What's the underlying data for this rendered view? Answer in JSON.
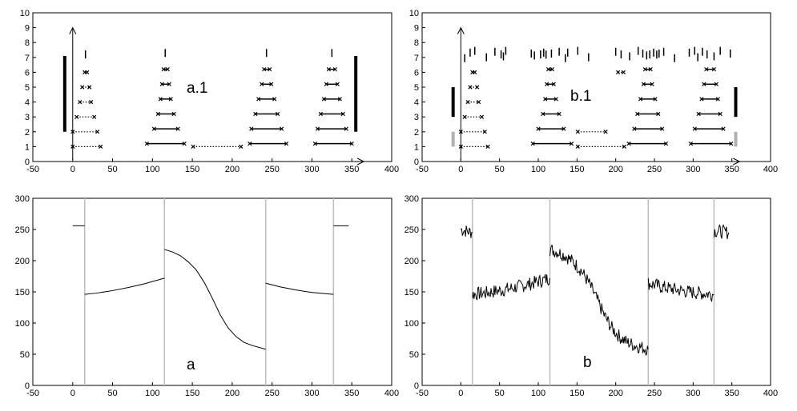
{
  "chart_data": [
    {
      "id": "a1",
      "type": "scatter",
      "annotation": "a.1",
      "xlim": [
        -50,
        400
      ],
      "ylim": [
        0,
        10
      ],
      "xticks": [
        -50,
        0,
        50,
        100,
        150,
        200,
        250,
        300,
        350,
        400
      ],
      "yticks": [
        0,
        1,
        2,
        3,
        4,
        5,
        6,
        7,
        8,
        9,
        10
      ],
      "segments": [
        {
          "x1": 0,
          "x2": 35,
          "y": 1,
          "style": "dotted"
        },
        {
          "x1": 0,
          "x2": 31,
          "y": 2,
          "style": "dotted"
        },
        {
          "x1": 5,
          "x2": 27,
          "y": 3,
          "style": "dotted"
        },
        {
          "x1": 9,
          "x2": 23,
          "y": 4,
          "style": "dotted"
        },
        {
          "x1": 12,
          "x2": 21,
          "y": 5,
          "style": "dotted"
        },
        {
          "x1": 15,
          "x2": 18,
          "y": 6,
          "style": "dotted"
        },
        {
          "x1": 16,
          "x2": 16,
          "y": 7.2,
          "style": "tick"
        },
        {
          "x1": 93,
          "x2": 140,
          "y": 1.2,
          "style": "solid"
        },
        {
          "x1": 102,
          "x2": 132,
          "y": 2.2,
          "style": "solid"
        },
        {
          "x1": 107,
          "x2": 127,
          "y": 3.2,
          "style": "solid"
        },
        {
          "x1": 110,
          "x2": 123,
          "y": 4.2,
          "style": "solid"
        },
        {
          "x1": 112,
          "x2": 121,
          "y": 5.2,
          "style": "solid"
        },
        {
          "x1": 114,
          "x2": 119,
          "y": 6.2,
          "style": "solid"
        },
        {
          "x1": 116,
          "x2": 116,
          "y": 7.3,
          "style": "tick"
        },
        {
          "x1": 151,
          "x2": 211,
          "y": 1,
          "style": "dotted"
        },
        {
          "x1": 222,
          "x2": 268,
          "y": 1.2,
          "style": "solid"
        },
        {
          "x1": 224,
          "x2": 262,
          "y": 2.2,
          "style": "solid"
        },
        {
          "x1": 229,
          "x2": 257,
          "y": 3.2,
          "style": "solid"
        },
        {
          "x1": 233,
          "x2": 253,
          "y": 4.2,
          "style": "solid"
        },
        {
          "x1": 237,
          "x2": 249,
          "y": 5.2,
          "style": "solid"
        },
        {
          "x1": 240,
          "x2": 247,
          "y": 6.2,
          "style": "solid"
        },
        {
          "x1": 243,
          "x2": 243,
          "y": 7.3,
          "style": "tick"
        },
        {
          "x1": 304,
          "x2": 350,
          "y": 1.2,
          "style": "solid"
        },
        {
          "x1": 307,
          "x2": 343,
          "y": 2.2,
          "style": "solid"
        },
        {
          "x1": 311,
          "x2": 339,
          "y": 3.2,
          "style": "solid"
        },
        {
          "x1": 315,
          "x2": 335,
          "y": 4.2,
          "style": "solid"
        },
        {
          "x1": 318,
          "x2": 332,
          "y": 5.2,
          "style": "solid"
        },
        {
          "x1": 321,
          "x2": 329,
          "y": 6.2,
          "style": "solid"
        },
        {
          "x1": 325,
          "x2": 325,
          "y": 7.3,
          "style": "tick"
        }
      ],
      "bars": [
        {
          "x": -10,
          "y1": 2,
          "y2": 7.1,
          "color": "#000000"
        },
        {
          "x": 355,
          "y1": 2,
          "y2": 7.1,
          "color": "#000000"
        }
      ],
      "arrows": {
        "x_from": -20,
        "x_to": 365,
        "y_axis_x": 0,
        "y_to": 9
      },
      "scatter_ticks": []
    },
    {
      "id": "b1",
      "type": "scatter",
      "annotation": "b.1",
      "xlim": [
        -50,
        400
      ],
      "ylim": [
        0,
        10
      ],
      "xticks": [
        -50,
        0,
        50,
        100,
        150,
        200,
        250,
        300,
        350,
        400
      ],
      "yticks": [
        0,
        1,
        2,
        3,
        4,
        5,
        6,
        7,
        8,
        9,
        10
      ],
      "segments": [
        {
          "x1": 0,
          "x2": 35,
          "y": 1,
          "style": "dotted"
        },
        {
          "x1": 0,
          "x2": 31,
          "y": 2,
          "style": "dotted"
        },
        {
          "x1": 5,
          "x2": 27,
          "y": 3,
          "style": "dotted"
        },
        {
          "x1": 9,
          "x2": 23,
          "y": 4,
          "style": "dotted"
        },
        {
          "x1": 12,
          "x2": 21,
          "y": 5,
          "style": "dotted"
        },
        {
          "x1": 15,
          "x2": 18,
          "y": 6,
          "style": "dotted"
        },
        {
          "x1": 93,
          "x2": 143,
          "y": 1.2,
          "style": "solid"
        },
        {
          "x1": 100,
          "x2": 133,
          "y": 2.2,
          "style": "solid"
        },
        {
          "x1": 106,
          "x2": 127,
          "y": 3.2,
          "style": "solid"
        },
        {
          "x1": 109,
          "x2": 123,
          "y": 4.2,
          "style": "solid"
        },
        {
          "x1": 111,
          "x2": 120,
          "y": 5.2,
          "style": "solid"
        },
        {
          "x1": 113,
          "x2": 118,
          "y": 6.2,
          "style": "solid"
        },
        {
          "x1": 151,
          "x2": 211,
          "y": 1,
          "style": "dotted"
        },
        {
          "x1": 151,
          "x2": 187,
          "y": 2,
          "style": "dotted"
        },
        {
          "x1": 217,
          "x2": 265,
          "y": 1.2,
          "style": "solid"
        },
        {
          "x1": 224,
          "x2": 260,
          "y": 2.2,
          "style": "solid"
        },
        {
          "x1": 228,
          "x2": 255,
          "y": 3.2,
          "style": "solid"
        },
        {
          "x1": 232,
          "x2": 251,
          "y": 4.2,
          "style": "solid"
        },
        {
          "x1": 236,
          "x2": 247,
          "y": 5.2,
          "style": "solid"
        },
        {
          "x1": 238,
          "x2": 245,
          "y": 6.2,
          "style": "solid"
        },
        {
          "x1": 297,
          "x2": 349,
          "y": 1.2,
          "style": "solid"
        },
        {
          "x1": 302,
          "x2": 339,
          "y": 2.2,
          "style": "solid"
        },
        {
          "x1": 307,
          "x2": 335,
          "y": 3.2,
          "style": "solid"
        },
        {
          "x1": 311,
          "x2": 332,
          "y": 4.2,
          "style": "solid"
        },
        {
          "x1": 314,
          "x2": 330,
          "y": 5.2,
          "style": "solid"
        },
        {
          "x1": 317,
          "x2": 327,
          "y": 6.2,
          "style": "solid"
        },
        {
          "x1": 203,
          "x2": 210,
          "y": 6,
          "style": "dotted"
        }
      ],
      "bars": [
        {
          "x": -10,
          "y1": 3,
          "y2": 5,
          "color": "#000000"
        },
        {
          "x": -10,
          "y1": 1,
          "y2": 2,
          "color": "#b0b0b0"
        },
        {
          "x": 355,
          "y1": 3,
          "y2": 5,
          "color": "#000000"
        },
        {
          "x": 355,
          "y1": 1,
          "y2": 2,
          "color": "#b0b0b0"
        }
      ],
      "arrows": {
        "x_from": -15,
        "x_to": 360,
        "y_axis_x": 0,
        "y_to": 9
      },
      "scatter_ticks": [
        5,
        12,
        18,
        33,
        44,
        52,
        55,
        58,
        91,
        95,
        103,
        107,
        110,
        117,
        127,
        135,
        138,
        151,
        165,
        200,
        207,
        218,
        229,
        235,
        240,
        244,
        249,
        253,
        256,
        262,
        276,
        295,
        302,
        306,
        312,
        318,
        327,
        335,
        348
      ]
    },
    {
      "id": "a",
      "type": "line",
      "annotation": "a",
      "xlim": [
        -50,
        400
      ],
      "ylim": [
        0,
        300
      ],
      "xticks": [
        -50,
        0,
        50,
        100,
        150,
        200,
        250,
        300,
        350,
        400
      ],
      "yticks": [
        0,
        50,
        100,
        150,
        200,
        250,
        300
      ],
      "vlines": [
        15,
        115,
        242,
        327
      ],
      "noise": 0,
      "series": [
        {
          "x": [
            0,
            15
          ],
          "y": [
            256,
            256
          ]
        },
        {
          "x": [
            15,
            30,
            50,
            70,
            90,
            115
          ],
          "y": [
            146,
            148,
            152,
            157,
            163,
            172
          ]
        },
        {
          "x": [
            115,
            125,
            135,
            145,
            155,
            165,
            175,
            185,
            195,
            205,
            215,
            225,
            242
          ],
          "y": [
            218,
            214,
            208,
            198,
            185,
            165,
            140,
            113,
            92,
            78,
            69,
            64,
            58
          ]
        },
        {
          "x": [
            242,
            260,
            280,
            300,
            327
          ],
          "y": [
            164,
            158,
            153,
            149,
            146
          ]
        },
        {
          "x": [
            327,
            346
          ],
          "y": [
            256,
            256
          ]
        }
      ]
    },
    {
      "id": "b",
      "type": "line",
      "annotation": "b",
      "xlim": [
        -50,
        400
      ],
      "ylim": [
        0,
        300
      ],
      "xticks": [
        -50,
        0,
        50,
        100,
        150,
        200,
        250,
        300,
        350,
        400
      ],
      "yticks": [
        0,
        50,
        100,
        150,
        200,
        250,
        300
      ],
      "vlines": [
        15,
        115,
        242,
        327
      ],
      "noise": 1,
      "series": [
        {
          "x": [
            0,
            15
          ],
          "y": [
            250,
            245
          ]
        },
        {
          "x": [
            15,
            30,
            50,
            70,
            90,
            115
          ],
          "y": [
            146,
            148,
            152,
            157,
            163,
            172
          ]
        },
        {
          "x": [
            115,
            125,
            135,
            145,
            155,
            165,
            175,
            185,
            195,
            205,
            215,
            225,
            242
          ],
          "y": [
            218,
            214,
            208,
            198,
            185,
            165,
            140,
            113,
            92,
            78,
            69,
            64,
            58
          ]
        },
        {
          "x": [
            242,
            260,
            280,
            300,
            327
          ],
          "y": [
            164,
            158,
            153,
            149,
            146
          ]
        },
        {
          "x": [
            327,
            346
          ],
          "y": [
            248,
            245
          ]
        }
      ]
    }
  ],
  "colors": {
    "axis": "#000000",
    "vline": "#bdbdbd",
    "line": "#000000",
    "gray_bar": "#b0b0b0"
  }
}
